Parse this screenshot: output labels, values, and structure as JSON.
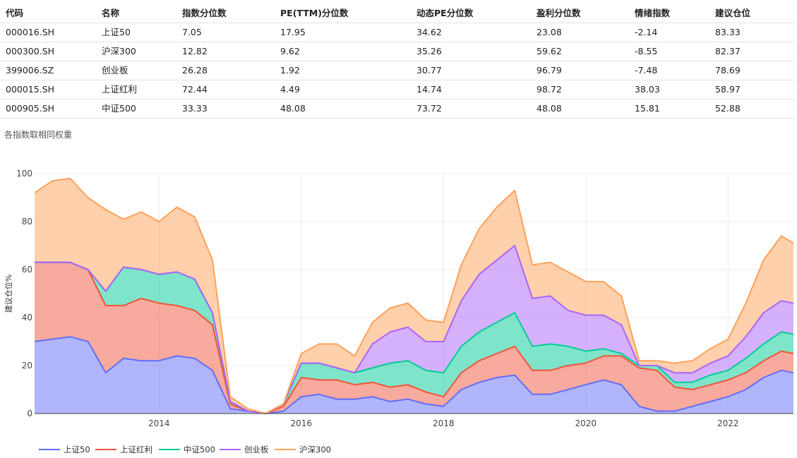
{
  "table": {
    "columns": [
      "代码",
      "名称",
      "指数分位数",
      "PE(TTM)分位数",
      "动态PE分位数",
      "盈利分位数",
      "情绪指数",
      "建议仓位"
    ],
    "rows": [
      [
        "000016.SH",
        "上证50",
        "7.05",
        "17.95",
        "34.62",
        "23.08",
        "-2.14",
        "83.33"
      ],
      [
        "000300.SH",
        "沪深300",
        "12.82",
        "9.62",
        "35.26",
        "59.62",
        "-8.55",
        "82.37"
      ],
      [
        "399006.SZ",
        "创业板",
        "26.28",
        "1.92",
        "30.77",
        "96.79",
        "-7.48",
        "78.69"
      ],
      [
        "000015.SH",
        "上证红利",
        "72.44",
        "4.49",
        "14.74",
        "98.72",
        "38.03",
        "58.97"
      ],
      [
        "000905.SH",
        "中证500",
        "33.33",
        "48.08",
        "73.72",
        "48.08",
        "15.81",
        "52.88"
      ]
    ]
  },
  "note": "各指数取相同权重",
  "chart_data": {
    "type": "area",
    "stacked": true,
    "ylabel": "建议仓位%",
    "ylim": [
      0,
      100
    ],
    "xlim": [
      2012.25,
      2022.92
    ],
    "x_ticks": [
      2014,
      2016,
      2018,
      2020,
      2022
    ],
    "y_ticks": [
      0,
      20,
      40,
      60,
      80,
      100
    ],
    "grid": true,
    "legend_position": "bottom",
    "x": [
      2012.25,
      2012.5,
      2012.75,
      2013.0,
      2013.25,
      2013.5,
      2013.75,
      2014.0,
      2014.25,
      2014.5,
      2014.75,
      2015.0,
      2015.25,
      2015.5,
      2015.75,
      2016.0,
      2016.25,
      2016.5,
      2016.75,
      2017.0,
      2017.25,
      2017.5,
      2017.75,
      2018.0,
      2018.25,
      2018.5,
      2018.75,
      2019.0,
      2019.25,
      2019.5,
      2019.75,
      2020.0,
      2020.25,
      2020.5,
      2020.75,
      2021.0,
      2021.25,
      2021.5,
      2021.75,
      2022.0,
      2022.25,
      2022.5,
      2022.75,
      2022.92
    ],
    "series": [
      {
        "name": "上证50",
        "color": "#636efa",
        "fill": "rgba(99,110,250,0.5)",
        "values": [
          30,
          31,
          32,
          30,
          17,
          23,
          22,
          22,
          24,
          23,
          18,
          2,
          1,
          0,
          1,
          7,
          8,
          6,
          6,
          7,
          5,
          6,
          4,
          3,
          10,
          13,
          15,
          16,
          8,
          8,
          10,
          12,
          14,
          12,
          3,
          1,
          1,
          3,
          5,
          7,
          10,
          15,
          18,
          17
        ]
      },
      {
        "name": "上证红利",
        "color": "#ef553b",
        "fill": "rgba(239,85,59,0.5)",
        "values": [
          33,
          32,
          31,
          30,
          28,
          22,
          26,
          24,
          21,
          20,
          19,
          2,
          0,
          0,
          2,
          8,
          6,
          8,
          6,
          6,
          6,
          6,
          5,
          4,
          7,
          9,
          10,
          12,
          10,
          10,
          10,
          9,
          10,
          12,
          16,
          17,
          10,
          7,
          7,
          7,
          7,
          7,
          8,
          8
        ]
      },
      {
        "name": "中证500",
        "color": "#00cc96",
        "fill": "rgba(0,204,150,0.5)",
        "values": [
          0,
          0,
          0,
          0,
          6,
          16,
          12,
          12,
          14,
          13,
          5,
          1,
          0,
          0,
          1,
          6,
          7,
          5,
          5,
          6,
          10,
          10,
          9,
          10,
          11,
          12,
          13,
          14,
          10,
          11,
          8,
          5,
          3,
          1,
          1,
          2,
          2,
          3,
          4,
          4,
          6,
          7,
          8,
          8
        ]
      },
      {
        "name": "创业板",
        "color": "#ab63fa",
        "fill": "rgba(171,99,250,0.5)",
        "values": [
          0,
          0,
          0,
          0,
          0,
          0,
          0,
          0,
          0,
          0,
          0,
          0,
          0,
          0,
          0,
          0,
          0,
          0,
          0,
          10,
          13,
          14,
          12,
          13,
          19,
          24,
          26,
          28,
          20,
          20,
          15,
          15,
          14,
          12,
          0,
          0,
          4,
          4,
          5,
          6,
          9,
          13,
          13,
          13
        ]
      },
      {
        "name": "沪深300",
        "color": "#ffa15a",
        "fill": "rgba(255,161,90,0.5)",
        "values": [
          29,
          34,
          35,
          30,
          34,
          20,
          24,
          22,
          27,
          26,
          22,
          2,
          1,
          0,
          0,
          4,
          8,
          10,
          7,
          9,
          10,
          10,
          9,
          8,
          15,
          19,
          22,
          23,
          14,
          14,
          16,
          14,
          14,
          12,
          2,
          2,
          4,
          5,
          6,
          7,
          14,
          22,
          27,
          25
        ]
      }
    ]
  }
}
